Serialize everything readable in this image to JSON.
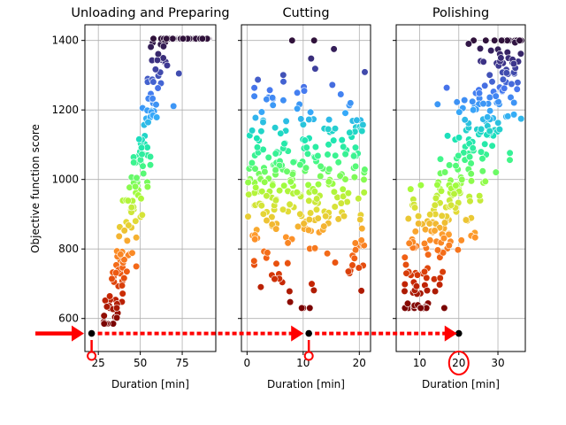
{
  "ylabel": "Objective function score",
  "ylim": [
    505,
    1445
  ],
  "y_ticks": [
    600,
    800,
    1000,
    1200,
    1400
  ],
  "highlight_y": 557,
  "colors": {
    "arrow": "#ff0000",
    "grid": "#b0b0b0",
    "highlight_point": "#000000",
    "colormap": [
      "#7a0403",
      "#c42503",
      "#f05b12",
      "#fe9b2d",
      "#e1dd37",
      "#a2fc3c",
      "#46f884",
      "#1ae4b6",
      "#36aaf9",
      "#4777ef",
      "#3e378f",
      "#30123b"
    ]
  },
  "chart_data": [
    {
      "type": "scatter",
      "title": "Unloading and Preparing",
      "xlabel": "Duration [min]",
      "xlim": [
        17,
        95
      ],
      "x_ticks": [
        25,
        50,
        75
      ],
      "ylim": [
        505,
        1445
      ],
      "cloud": {
        "x_min": 28,
        "x_max": 91,
        "y_min": 585,
        "y_max": 1405,
        "slope": 25,
        "intercept": -190,
        "spread": 82,
        "n": 300
      },
      "highlighted_point": {
        "x": 21,
        "y": 557
      },
      "marker": "small-circle"
    },
    {
      "type": "scatter",
      "title": "Cutting",
      "xlabel": "Duration [min]",
      "xlim": [
        -1,
        22
      ],
      "x_ticks": [
        0,
        10,
        20
      ],
      "ylim": [
        505,
        1445
      ],
      "cloud": {
        "x_min": 0,
        "x_max": 21,
        "y_min": 630,
        "y_max": 1400,
        "slope": 0,
        "intercept": 995,
        "spread": 150,
        "n": 300
      },
      "highlighted_point": {
        "x": 11,
        "y": 557
      },
      "marker": "small-circle"
    },
    {
      "type": "scatter",
      "title": "Polishing",
      "xlabel": "Duration [min]",
      "xlim": [
        4,
        37
      ],
      "x_ticks": [
        10,
        20,
        30
      ],
      "ylim": [
        505,
        1445
      ],
      "cloud": {
        "x_min": 6,
        "x_max": 36,
        "y_min": 630,
        "y_max": 1400,
        "slope": 25,
        "intercept": 510,
        "spread": 110,
        "n": 300
      },
      "highlighted_point": {
        "x": 20,
        "y": 557
      },
      "marker": "large-circle"
    }
  ]
}
